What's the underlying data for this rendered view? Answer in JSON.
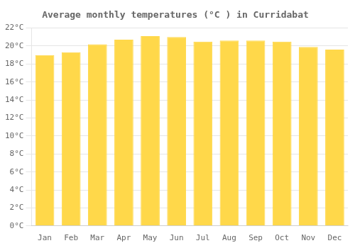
{
  "chart_data": {
    "type": "bar",
    "title": "Average monthly temperatures (°C ) in Curridabat",
    "categories": [
      "Jan",
      "Feb",
      "Mar",
      "Apr",
      "May",
      "Jun",
      "Jul",
      "Aug",
      "Sep",
      "Oct",
      "Nov",
      "Dec"
    ],
    "values": [
      19.0,
      19.3,
      20.2,
      20.7,
      21.1,
      21.0,
      20.5,
      20.6,
      20.6,
      20.5,
      19.9,
      19.6
    ],
    "color": "#FFD84A",
    "ylim": [
      0,
      22
    ],
    "yticks": [
      {
        "value": 0,
        "label": "0°C"
      },
      {
        "value": 2,
        "label": "2°C"
      },
      {
        "value": 4,
        "label": "4°C"
      },
      {
        "value": 6,
        "label": "6°C"
      },
      {
        "value": 8,
        "label": "8°C"
      },
      {
        "value": 10,
        "label": "10°C"
      },
      {
        "value": 12,
        "label": "12°C"
      },
      {
        "value": 14,
        "label": "14°C"
      },
      {
        "value": 16,
        "label": "16°C"
      },
      {
        "value": 18,
        "label": "18°C"
      },
      {
        "value": 20,
        "label": "20°C"
      },
      {
        "value": 22,
        "label": "22°C"
      }
    ],
    "grid": true
  }
}
